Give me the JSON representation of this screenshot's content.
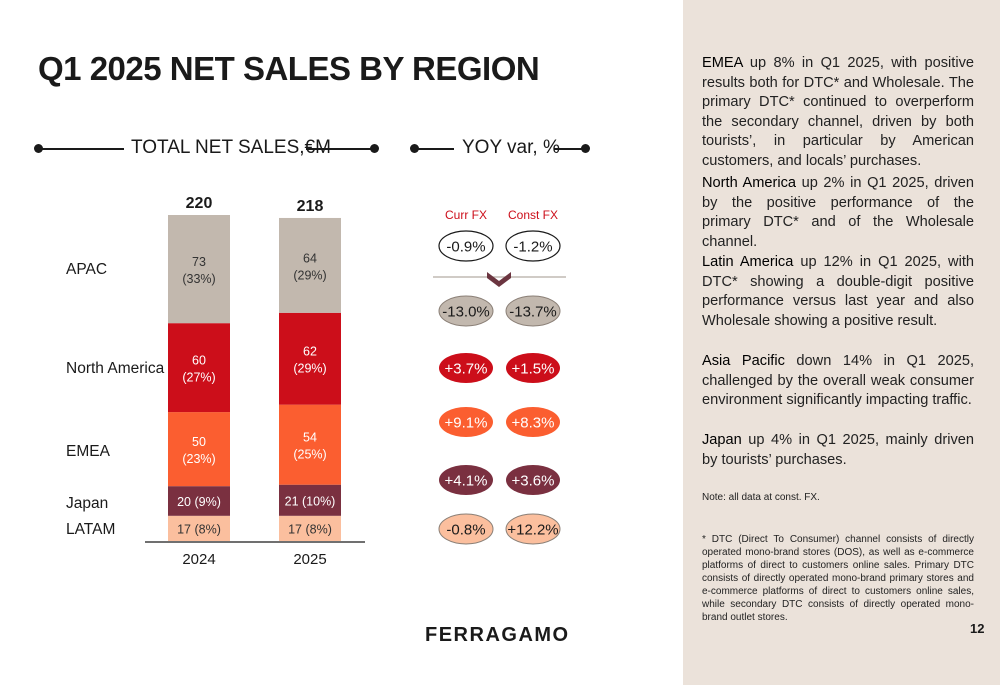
{
  "title": "Q1 2025 NET SALES BY REGION",
  "left_header": "TOTAL NET SALES,€M",
  "right_header": "YOY var, %",
  "fx_labels": {
    "curr": "Curr FX",
    "const": "Const FX"
  },
  "totals_var": {
    "curr": "-0.9%",
    "const": "-1.2%"
  },
  "colors": {
    "APAC": "#c2b8ae",
    "North America": "#cc0e1a",
    "EMEA": "#fb5e30",
    "Japan": "#7a3040",
    "LATAM": "#fbbf9e",
    "panel": "#ebe2da",
    "fx_label": "#cc0e1a"
  },
  "chart_data": {
    "type": "bar",
    "stacked": true,
    "title": "TOTAL NET SALES,€M",
    "categories": [
      "2024",
      "2025"
    ],
    "totals": [
      220,
      218
    ],
    "series": [
      {
        "name": "APAC",
        "values": [
          73,
          64
        ],
        "labels": [
          "73\n(33%)",
          "64\n(29%)"
        ],
        "yoy_curr": "-13.0%",
        "yoy_const": "-13.7%"
      },
      {
        "name": "North America",
        "values": [
          60,
          62
        ],
        "labels": [
          "60\n(27%)",
          "62\n(29%)"
        ],
        "yoy_curr": "+3.7%",
        "yoy_const": "+1.5%"
      },
      {
        "name": "EMEA",
        "values": [
          50,
          54
        ],
        "labels": [
          "50\n(23%)",
          "54\n(25%)"
        ],
        "yoy_curr": "+9.1%",
        "yoy_const": "+8.3%"
      },
      {
        "name": "Japan",
        "values": [
          20,
          21
        ],
        "labels": [
          "20 (9%)",
          "21 (10%)"
        ],
        "yoy_curr": "+4.1%",
        "yoy_const": "+3.6%"
      },
      {
        "name": "LATAM",
        "values": [
          17,
          17
        ],
        "labels": [
          "17 (8%)",
          "17 (8%)"
        ],
        "yoy_curr": "-0.8%",
        "yoy_const": "+12.2%"
      }
    ]
  },
  "commentary": [
    {
      "region": "EMEA",
      "text": " up 8% in Q1 2025, with positive results both for DTC* and Wholesale. The primary DTC* continued to overperform the secondary channel, driven by both tourists’, in particular by American customers, and locals’ purchases."
    },
    {
      "region": "North America",
      "text": " up 2% in Q1 2025, driven by the positive performance of the primary DTC* and of the Wholesale channel."
    },
    {
      "region": "Latin America",
      "text": " up 12% in Q1 2025, with DTC* showing a double-digit positive performance versus last year and also Wholesale showing a positive result."
    },
    {
      "region": "Asia Pacific",
      "text": " down 14% in Q1 2025, challenged by the overall weak consumer environment significantly impacting traffic."
    },
    {
      "region": "Japan",
      "text": " up 4% in Q1 2025, mainly driven by tourists’ purchases."
    }
  ],
  "note": "Note: all data at const. FX.",
  "footnote": "* DTC (Direct To Consumer) channel consists of directly operated mono-brand stores (DOS), as well as e-commerce platforms of direct to customers online sales. Primary DTC consists of directly operated mono-brand primary stores and e-commerce platforms of direct to customers online sales, while secondary DTC consists of directly operated mono-brand outlet stores.",
  "brand": "FERRAGAMO",
  "page_number": "12"
}
